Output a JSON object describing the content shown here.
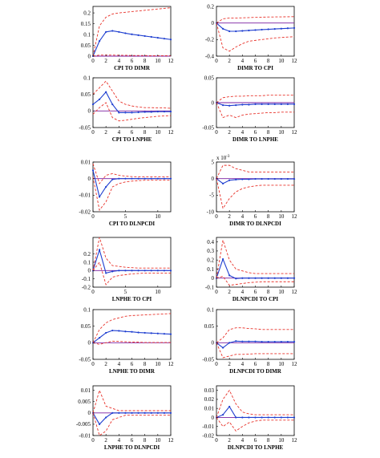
{
  "colors": {
    "response": "#1f3fd0",
    "band": "#e8322a",
    "zero_line": "#7a1fa0",
    "frame": "#000000"
  },
  "chart_data": [
    {
      "type": "line",
      "caption": "CPI TO DIMR",
      "x": [
        0,
        1,
        2,
        3,
        4,
        5,
        6,
        7,
        8,
        9,
        10,
        11,
        12
      ],
      "xlim": [
        0,
        12
      ],
      "xticks": [
        "0",
        "2",
        "4",
        "6",
        "8",
        "10",
        "12"
      ],
      "ylim": [
        0,
        0.23
      ],
      "yticks": [
        "0",
        "0.05",
        "0.1",
        "0.15",
        "0.2"
      ],
      "exponent": "",
      "series": [
        {
          "role": "response",
          "values": [
            0.0,
            0.07,
            0.112,
            0.117,
            0.112,
            0.106,
            0.101,
            0.097,
            0.093,
            0.089,
            0.085,
            0.081,
            0.077
          ]
        },
        {
          "role": "upper",
          "values": [
            0.0,
            0.14,
            0.18,
            0.195,
            0.2,
            0.203,
            0.206,
            0.209,
            0.212,
            0.215,
            0.218,
            0.221,
            0.224
          ]
        },
        {
          "role": "lower",
          "values": [
            0.0,
            0.005,
            0.005,
            0.005,
            0.004,
            0.004,
            0.003,
            0.003,
            0.003,
            0.002,
            0.002,
            0.002,
            0.002
          ]
        }
      ]
    },
    {
      "type": "line",
      "caption": "DIMR TO CPI",
      "x": [
        0,
        1,
        2,
        3,
        4,
        5,
        6,
        7,
        8,
        9,
        10,
        11,
        12
      ],
      "xlim": [
        0,
        12
      ],
      "xticks": [
        "0",
        "2",
        "4",
        "6",
        "8",
        "10",
        "12"
      ],
      "ylim": [
        -0.4,
        0.2
      ],
      "yticks": [
        "-0.4",
        "-0.2",
        "0",
        "0.2"
      ],
      "exponent": "",
      "series": [
        {
          "role": "response",
          "values": [
            0.0,
            -0.07,
            -0.1,
            -0.1,
            -0.095,
            -0.09,
            -0.085,
            -0.08,
            -0.076,
            -0.072,
            -0.068,
            -0.064,
            -0.06
          ]
        },
        {
          "role": "upper",
          "values": [
            0.0,
            0.05,
            0.06,
            0.06,
            0.062,
            0.065,
            0.068,
            0.07,
            0.072,
            0.073,
            0.074,
            0.075,
            0.076
          ]
        },
        {
          "role": "lower",
          "values": [
            0.0,
            -0.3,
            -0.34,
            -0.29,
            -0.25,
            -0.22,
            -0.21,
            -0.2,
            -0.19,
            -0.18,
            -0.175,
            -0.17,
            -0.165
          ]
        }
      ]
    },
    {
      "type": "line",
      "caption": "CPI TO LNPHE",
      "x": [
        0,
        1,
        2,
        3,
        4,
        5,
        6,
        7,
        8,
        9,
        10,
        11,
        12
      ],
      "xlim": [
        0,
        12
      ],
      "xticks": [
        "0",
        "2",
        "4",
        "6",
        "8",
        "10",
        "12"
      ],
      "ylim": [
        -0.05,
        0.1
      ],
      "yticks": [
        "-0.05",
        "0",
        "0.05",
        "0.1"
      ],
      "exponent": "",
      "series": [
        {
          "role": "response",
          "values": [
            0.02,
            0.035,
            0.057,
            0.02,
            -0.005,
            -0.005,
            -0.005,
            -0.004,
            -0.003,
            -0.003,
            -0.002,
            -0.002,
            -0.002
          ]
        },
        {
          "role": "upper",
          "values": [
            0.05,
            0.07,
            0.09,
            0.06,
            0.03,
            0.02,
            0.015,
            0.012,
            0.01,
            0.01,
            0.009,
            0.009,
            0.008
          ]
        },
        {
          "role": "lower",
          "values": [
            -0.01,
            0.01,
            0.025,
            -0.02,
            -0.03,
            -0.028,
            -0.025,
            -0.022,
            -0.02,
            -0.018,
            -0.016,
            -0.015,
            -0.014
          ]
        }
      ]
    },
    {
      "type": "line",
      "caption": "DIMR TO LNPHE",
      "x": [
        0,
        1,
        2,
        3,
        4,
        5,
        6,
        7,
        8,
        9,
        10,
        11,
        12
      ],
      "xlim": [
        0,
        12
      ],
      "xticks": [
        "0",
        "2",
        "4",
        "6",
        "8",
        "10",
        "12"
      ],
      "ylim": [
        -0.05,
        0.05
      ],
      "yticks": [
        "-0.05",
        "0",
        "0.05"
      ],
      "exponent": "",
      "series": [
        {
          "role": "response",
          "values": [
            0.0,
            -0.005,
            -0.006,
            -0.005,
            -0.004,
            -0.004,
            -0.003,
            -0.003,
            -0.003,
            -0.003,
            -0.003,
            -0.003,
            -0.003
          ]
        },
        {
          "role": "upper",
          "values": [
            0.0,
            0.01,
            0.012,
            0.013,
            0.013,
            0.014,
            0.014,
            0.014,
            0.015,
            0.015,
            0.015,
            0.015,
            0.015
          ]
        },
        {
          "role": "lower",
          "values": [
            0.0,
            -0.03,
            -0.025,
            -0.03,
            -0.025,
            -0.023,
            -0.022,
            -0.021,
            -0.02,
            -0.02,
            -0.019,
            -0.019,
            -0.019
          ]
        }
      ]
    },
    {
      "type": "line",
      "caption": "CPI TO DLNPCDI",
      "x": [
        0,
        1,
        2,
        3,
        4,
        5,
        6,
        7,
        8,
        9,
        10,
        11,
        12
      ],
      "xlim": [
        0,
        12
      ],
      "xticks": [
        "0",
        "5",
        "10"
      ],
      "ylim": [
        -0.02,
        0.01
      ],
      "yticks": [
        "-0.02",
        "-0.01",
        "0",
        "0.01"
      ],
      "exponent": "",
      "series": [
        {
          "role": "response",
          "values": [
            0.005,
            -0.011,
            -0.005,
            -0.0005,
            0.0,
            0.0,
            0.0,
            0.0,
            0.0,
            0.0,
            0.0,
            0.0,
            0.0
          ]
        },
        {
          "role": "upper",
          "values": [
            0.009,
            -0.003,
            0.002,
            0.003,
            0.002,
            0.0015,
            0.0012,
            0.001,
            0.001,
            0.001,
            0.001,
            0.001,
            0.001
          ]
        },
        {
          "role": "lower",
          "values": [
            0.001,
            -0.019,
            -0.014,
            -0.005,
            -0.003,
            -0.002,
            -0.0015,
            -0.0012,
            -0.001,
            -0.001,
            -0.001,
            -0.001,
            -0.001
          ]
        }
      ]
    },
    {
      "type": "line",
      "caption": "DIMR TO DLNPCDI",
      "x": [
        0,
        1,
        2,
        3,
        4,
        5,
        6,
        7,
        8,
        9,
        10,
        11,
        12
      ],
      "xlim": [
        0,
        12
      ],
      "xticks": [
        "0",
        "2",
        "4",
        "6",
        "8",
        "10",
        "12"
      ],
      "ylim": [
        -10,
        5
      ],
      "yticks": [
        "-10",
        "-5",
        "0",
        "5"
      ],
      "exponent": "x 10-3",
      "series": [
        {
          "role": "response",
          "values": [
            0.0,
            -1.5,
            -0.5,
            -0.3,
            -0.2,
            -0.2,
            -0.1,
            -0.1,
            -0.1,
            -0.1,
            -0.1,
            -0.1,
            -0.1
          ]
        },
        {
          "role": "upper",
          "values": [
            0.0,
            4.0,
            4.0,
            3.0,
            2.5,
            2.0,
            2.0,
            2.0,
            2.0,
            2.0,
            2.0,
            2.0,
            2.0
          ]
        },
        {
          "role": "lower",
          "values": [
            0.0,
            -9.0,
            -6.0,
            -4.0,
            -3.0,
            -2.5,
            -2.2,
            -2.0,
            -2.0,
            -2.0,
            -2.0,
            -2.0,
            -2.0
          ]
        }
      ]
    },
    {
      "type": "line",
      "caption": "LNPHE TO CPI",
      "x": [
        0,
        1,
        2,
        3,
        4,
        5,
        6,
        7,
        8,
        9,
        10,
        11,
        12
      ],
      "xlim": [
        0,
        12
      ],
      "xticks": [
        "0",
        "5",
        "10"
      ],
      "ylim": [
        -0.2,
        0.4
      ],
      "yticks": [
        "-0.2",
        "-0.1",
        "0",
        "0.1",
        "0.2"
      ],
      "exponent": "",
      "series": [
        {
          "role": "response",
          "values": [
            0.0,
            0.25,
            -0.03,
            -0.01,
            0.0,
            0.0,
            0.0,
            0.0,
            0.0,
            0.0,
            0.0,
            0.0,
            0.0
          ]
        },
        {
          "role": "upper",
          "values": [
            0.0,
            0.4,
            0.15,
            0.06,
            0.05,
            0.04,
            0.035,
            0.03,
            0.03,
            0.03,
            0.03,
            0.03,
            0.03
          ]
        },
        {
          "role": "lower",
          "values": [
            0.0,
            0.1,
            -0.17,
            -0.08,
            -0.06,
            -0.05,
            -0.04,
            -0.035,
            -0.03,
            -0.03,
            -0.03,
            -0.03,
            -0.03
          ]
        }
      ]
    },
    {
      "type": "line",
      "caption": "DLNPCDI TO CPI",
      "x": [
        0,
        1,
        2,
        3,
        4,
        5,
        6,
        7,
        8,
        9,
        10,
        11,
        12
      ],
      "xlim": [
        0,
        12
      ],
      "xticks": [
        "0",
        "2",
        "4",
        "6",
        "8",
        "10",
        "12"
      ],
      "ylim": [
        -0.1,
        0.45
      ],
      "yticks": [
        "-0.1",
        "0",
        "0.1",
        "0.2",
        "0.3",
        "0.4"
      ],
      "exponent": "",
      "series": [
        {
          "role": "response",
          "values": [
            0.0,
            0.21,
            0.03,
            -0.005,
            0.0,
            0.0,
            0.0,
            0.0,
            0.0,
            0.0,
            0.0,
            0.0,
            0.0
          ]
        },
        {
          "role": "upper",
          "values": [
            0.0,
            0.42,
            0.2,
            0.1,
            0.08,
            0.06,
            0.05,
            0.05,
            0.05,
            0.05,
            0.05,
            0.05,
            0.05
          ]
        },
        {
          "role": "lower",
          "values": [
            0.0,
            0.02,
            -0.08,
            -0.07,
            -0.06,
            -0.05,
            -0.045,
            -0.04,
            -0.04,
            -0.04,
            -0.04,
            -0.04,
            -0.04
          ]
        }
      ]
    },
    {
      "type": "line",
      "caption": "LNPHE TO DIMR",
      "x": [
        0,
        1,
        2,
        3,
        4,
        5,
        6,
        7,
        8,
        9,
        10,
        11,
        12
      ],
      "xlim": [
        0,
        12
      ],
      "xticks": [
        "0",
        "2",
        "4",
        "6",
        "8",
        "10",
        "12"
      ],
      "ylim": [
        -0.05,
        0.1
      ],
      "yticks": [
        "-0.05",
        "0",
        "0.05",
        "0.1"
      ],
      "exponent": "",
      "series": [
        {
          "role": "response",
          "values": [
            0.0,
            0.015,
            0.03,
            0.037,
            0.036,
            0.034,
            0.033,
            0.031,
            0.03,
            0.029,
            0.028,
            0.027,
            0.026
          ]
        },
        {
          "role": "upper",
          "values": [
            0.0,
            0.04,
            0.06,
            0.07,
            0.075,
            0.08,
            0.082,
            0.083,
            0.084,
            0.085,
            0.086,
            0.087,
            0.088
          ]
        },
        {
          "role": "lower",
          "values": [
            0.0,
            -0.005,
            0.0,
            0.005,
            0.004,
            0.003,
            0.002,
            0.002,
            0.001,
            0.001,
            0.001,
            0.001,
            0.001
          ]
        }
      ]
    },
    {
      "type": "line",
      "caption": "DLNPCDI TO DIMR",
      "x": [
        0,
        1,
        2,
        3,
        4,
        5,
        6,
        7,
        8,
        9,
        10,
        11,
        12
      ],
      "xlim": [
        0,
        12
      ],
      "xticks": [
        "0",
        "2",
        "4",
        "6",
        "8",
        "10",
        "12"
      ],
      "ylim": [
        -0.05,
        0.1
      ],
      "yticks": [
        "-0.05",
        "0",
        "0.05",
        "0.1"
      ],
      "exponent": "",
      "series": [
        {
          "role": "response",
          "values": [
            0.0,
            -0.015,
            0.0,
            0.005,
            0.004,
            0.004,
            0.004,
            0.003,
            0.003,
            0.003,
            0.003,
            0.003,
            0.003
          ]
        },
        {
          "role": "upper",
          "values": [
            0.0,
            0.015,
            0.04,
            0.045,
            0.045,
            0.043,
            0.042,
            0.04,
            0.04,
            0.04,
            0.04,
            0.04,
            0.04
          ]
        },
        {
          "role": "lower",
          "values": [
            0.0,
            -0.045,
            -0.04,
            -0.035,
            -0.035,
            -0.034,
            -0.033,
            -0.033,
            -0.033,
            -0.033,
            -0.033,
            -0.033,
            -0.033
          ]
        }
      ]
    },
    {
      "type": "line",
      "caption": "LNPHE TO DLNPCDI",
      "x": [
        0,
        1,
        2,
        3,
        4,
        5,
        6,
        7,
        8,
        9,
        10,
        11,
        12
      ],
      "xlim": [
        0,
        12
      ],
      "xticks": [
        "0",
        "2",
        "4",
        "6",
        "8",
        "10",
        "12"
      ],
      "ylim": [
        -0.01,
        0.012
      ],
      "yticks": [
        "-0.01",
        "-0.005",
        "0",
        "0.005",
        "0.01"
      ],
      "exponent": "",
      "series": [
        {
          "role": "response",
          "values": [
            0.0,
            -0.005,
            -0.002,
            0.0,
            0.0,
            0.0,
            0.0,
            0.0,
            0.0,
            0.0,
            0.0,
            0.0,
            0.0
          ]
        },
        {
          "role": "upper",
          "values": [
            0.0,
            0.01,
            0.003,
            0.002,
            0.001,
            0.001,
            0.001,
            0.001,
            0.001,
            0.001,
            0.001,
            0.001,
            0.001
          ]
        },
        {
          "role": "lower",
          "values": [
            0.0,
            -0.01,
            -0.008,
            -0.003,
            -0.002,
            -0.001,
            -0.001,
            -0.001,
            -0.001,
            -0.001,
            -0.001,
            -0.001,
            -0.001
          ]
        }
      ]
    },
    {
      "type": "line",
      "caption": "DLNPCDI TO LNPHE",
      "x": [
        0,
        1,
        2,
        3,
        4,
        5,
        6,
        7,
        8,
        9,
        10,
        11,
        12
      ],
      "xlim": [
        0,
        12
      ],
      "xticks": [
        "0",
        "2",
        "4",
        "6",
        "8",
        "10",
        "12"
      ],
      "ylim": [
        -0.02,
        0.035
      ],
      "yticks": [
        "-0.02",
        "-0.01",
        "0",
        "0.01",
        "0.02",
        "0.03"
      ],
      "exponent": "",
      "series": [
        {
          "role": "response",
          "values": [
            0.0,
            0.003,
            0.012,
            0.0,
            0.0,
            0.0,
            0.0,
            0.0,
            0.0,
            0.0,
            0.0,
            0.0,
            0.0
          ]
        },
        {
          "role": "upper",
          "values": [
            0.0,
            0.02,
            0.03,
            0.015,
            0.006,
            0.004,
            0.003,
            0.003,
            0.003,
            0.003,
            0.003,
            0.003,
            0.003
          ]
        },
        {
          "role": "lower",
          "values": [
            0.0,
            -0.01,
            -0.005,
            -0.015,
            -0.01,
            -0.006,
            -0.004,
            -0.003,
            -0.003,
            -0.003,
            -0.003,
            -0.003,
            -0.003
          ]
        }
      ]
    }
  ]
}
